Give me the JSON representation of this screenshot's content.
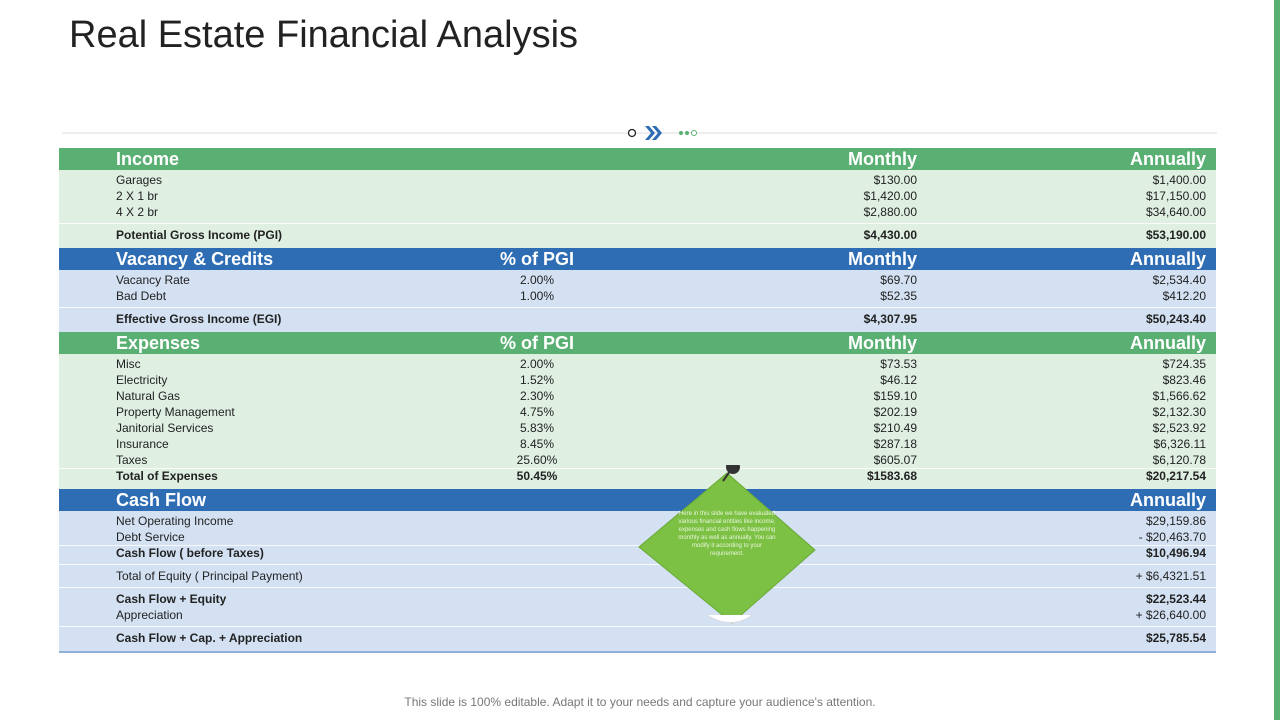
{
  "title": "Real Estate Financial Analysis",
  "footer": "This slide is 100% editable. Adapt it to your needs and capture your audience's attention.",
  "note": "Here in this slide we have evaluated various financial entities like income, expenses and cash flows happening monthly as well as annually. You can modify it according to your requirement.",
  "sections": [
    {
      "color": "green",
      "header": {
        "label": "Income",
        "monthly": "Monthly",
        "annually": "Annually"
      },
      "groups": [
        [
          {
            "name": "Garages",
            "monthly": "$130.00",
            "annually": "$1,400.00"
          },
          {
            "name": "2 X 1 br",
            "monthly": "$1,420.00",
            "annually": "$17,150.00"
          },
          {
            "name": "4 X 2 br",
            "monthly": "$2,880.00",
            "annually": "$34,640.00"
          }
        ],
        [
          {
            "name": "Potential Gross Income (PGI)",
            "monthly": "$4,430.00",
            "annually": "$53,190.00",
            "bold": true
          }
        ]
      ]
    },
    {
      "color": "blue",
      "header": {
        "label": "Vacancy & Credits",
        "pct": "% of PGI",
        "monthly": "Monthly",
        "annually": "Annually"
      },
      "groups": [
        [
          {
            "name": "Vacancy Rate",
            "pct": "2.00%",
            "monthly": "$69.70",
            "annually": "$2,534.40"
          },
          {
            "name": "Bad Debt",
            "pct": "1.00%",
            "monthly": "$52.35",
            "annually": "$412.20"
          }
        ],
        [
          {
            "name": "Effective Gross Income (EGI)",
            "monthly": "$4,307.95",
            "annually": "$50,243.40",
            "bold": true
          }
        ]
      ]
    },
    {
      "color": "green",
      "header": {
        "label": "Expenses",
        "pct": "% of PGI",
        "monthly": "Monthly",
        "annually": "Annually"
      },
      "groups": [
        [
          {
            "name": "Misc",
            "pct": "2.00%",
            "monthly": "$73.53",
            "annually": "$724.35"
          },
          {
            "name": "Electricity",
            "pct": "1.52%",
            "monthly": "$46.12",
            "annually": "$823.46"
          },
          {
            "name": "Natural Gas",
            "pct": "2.30%",
            "monthly": "$159.10",
            "annually": "$1,566.62"
          },
          {
            "name": "Property Management",
            "pct": "4.75%",
            "monthly": "$202.19",
            "annually": "$2,132.30"
          },
          {
            "name": "Janitorial Services",
            "pct": "5.83%",
            "monthly": "$210.49",
            "annually": "$2,523.92"
          },
          {
            "name": "Insurance",
            "pct": "8.45%",
            "monthly": "$287.18",
            "annually": "$6,326.11"
          },
          {
            "name": "Taxes",
            "pct": "25.60%",
            "monthly": "$605.07",
            "annually": "$6,120.78"
          },
          {
            "name": "Total of Expenses",
            "pct": "50.45%",
            "monthly": "$1583.68",
            "annually": "$20,217.54",
            "bold": true
          }
        ]
      ]
    },
    {
      "color": "blue",
      "header": {
        "label": "Cash Flow",
        "annually": "Annually"
      },
      "groups": [
        [
          {
            "name": "Net Operating Income",
            "annually": "$29,159.86"
          },
          {
            "name": "Debt Service",
            "annually": "- $20,463.70"
          },
          {
            "name": "Cash Flow ( before Taxes)",
            "annually": "$10,496.94",
            "bold": true
          }
        ],
        [
          {
            "name": "Total of Equity ( Principal Payment)",
            "annually": "+ $6,4321.51"
          }
        ],
        [
          {
            "name": "Cash Flow + Equity",
            "annually": "$22,523.44",
            "bold": true
          },
          {
            "name": "Appreciation",
            "annually": "+ $26,640.00"
          }
        ],
        [
          {
            "name": "Cash Flow + Cap. + Appreciation",
            "annually": "$25,785.54",
            "bold": true
          }
        ]
      ]
    }
  ]
}
